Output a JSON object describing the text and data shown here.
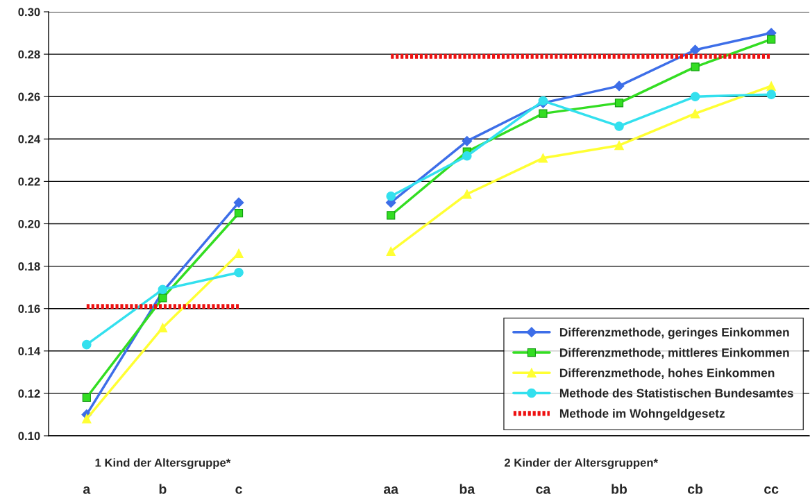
{
  "chart_data": {
    "type": "line",
    "categories": [
      "a",
      "b",
      "c",
      null,
      "aa",
      "ba",
      "ca",
      "bb",
      "cb",
      "cc"
    ],
    "series": [
      {
        "name": "Differenzmethode, geringes Einkommen",
        "color": "#3d6ee8",
        "marker": "diamond",
        "values": [
          0.11,
          0.168,
          0.21,
          null,
          0.21,
          0.239,
          0.257,
          0.265,
          0.282,
          0.29
        ]
      },
      {
        "name": "Differenzmethode, mittleres Einkommen",
        "color": "#33dd22",
        "marker": "square",
        "values": [
          0.118,
          0.165,
          0.205,
          null,
          0.204,
          0.234,
          0.252,
          0.257,
          0.274,
          0.287
        ]
      },
      {
        "name": "Differenzmethode, hohes Einkommen",
        "color": "#ffff33",
        "marker": "triangle",
        "values": [
          0.108,
          0.151,
          0.186,
          null,
          0.187,
          0.214,
          0.231,
          0.237,
          0.252,
          0.265
        ]
      },
      {
        "name": "Methode des Statistischen Bundesamtes",
        "color": "#33e0ee",
        "marker": "circle",
        "values": [
          0.143,
          0.169,
          0.177,
          null,
          0.213,
          0.232,
          0.258,
          0.246,
          0.26,
          0.261
        ]
      },
      {
        "name": "Methode im Wohngeldgesetz",
        "color": "#ee1111",
        "marker": "none",
        "line_style": "dotted",
        "values": [
          0.161,
          0.161,
          0.161,
          null,
          0.279,
          0.279,
          0.279,
          0.279,
          0.279,
          0.279
        ]
      }
    ],
    "ylim": [
      0.1,
      0.3
    ],
    "yticks": [
      {
        "value": 0.1,
        "label": "0.10"
      },
      {
        "value": 0.12,
        "label": "0.12"
      },
      {
        "value": 0.14,
        "label": "0.14"
      },
      {
        "value": 0.16,
        "label": "0.16"
      },
      {
        "value": 0.18,
        "label": "0.18"
      },
      {
        "value": 0.2,
        "label": "0.20"
      },
      {
        "value": 0.22,
        "label": "0.22"
      },
      {
        "value": 0.24,
        "label": "0.24"
      },
      {
        "value": 0.26,
        "label": "0.26"
      },
      {
        "value": 0.28,
        "label": "0.28"
      },
      {
        "value": 0.3,
        "label": "0.30"
      }
    ],
    "grid": "y",
    "legend": "bottom right",
    "annotations": [
      "1 Kind der Altersgruppe*",
      "2 Kinder der Altersgruppen*"
    ]
  }
}
